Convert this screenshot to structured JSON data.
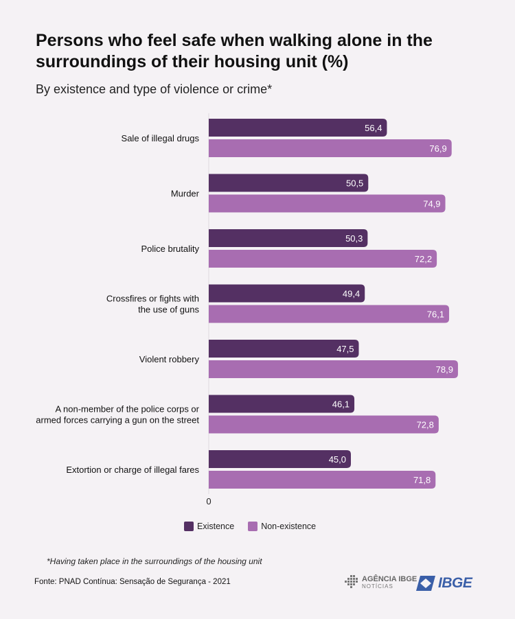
{
  "title": "Persons who feel safe when walking alone in the surroundings of their housing unit (%)",
  "subtitle": "By existence and type of violence or crime*",
  "footnote": "*Having taken place in the surroundings of the housing unit",
  "source": "Fonte: PNAD Contínua: Sensação de Segurança - 2021",
  "logos": {
    "agencia_line1": "AGÊNCIA IBGE",
    "agencia_line2": "NOTÍCIAS",
    "ibge": "IBGE"
  },
  "colors": {
    "existence": "#543063",
    "non_existence": "#a86db1",
    "background": "#f5f2f5"
  },
  "chart_data": {
    "type": "bar",
    "orientation": "horizontal",
    "categories": [
      "Sale of illegal drugs",
      "Murder",
      "Police brutality",
      "Crossfires or fights with the use of guns",
      "Violent robbery",
      "A non-member of the police corps or armed forces carrying a gun on the street",
      "Extortion or charge of illegal fares"
    ],
    "category_lines": [
      [
        "Sale of illegal drugs"
      ],
      [
        "Murder"
      ],
      [
        "Police brutality"
      ],
      [
        "Crossfires or fights with",
        "the use of guns"
      ],
      [
        "Violent robbery"
      ],
      [
        "A non-member of the police corps or",
        "armed forces carrying a gun on the street"
      ],
      [
        "Extortion or charge of illegal fares"
      ]
    ],
    "series": [
      {
        "name": "Existence",
        "values": [
          56.4,
          50.5,
          50.3,
          49.4,
          47.5,
          46.1,
          45.0
        ],
        "labels": [
          "56,4",
          "50,5",
          "50,3",
          "49,4",
          "47,5",
          "46,1",
          "45,0"
        ]
      },
      {
        "name": "Non-existence",
        "values": [
          76.9,
          74.9,
          72.2,
          76.1,
          78.9,
          72.8,
          71.8
        ],
        "labels": [
          "76,9",
          "74,9",
          "72,2",
          "76,1",
          "78,9",
          "72,8",
          "71,8"
        ]
      }
    ],
    "x_ticks": [
      "0"
    ],
    "xlim": [
      0,
      80
    ],
    "legend_position": "bottom"
  }
}
